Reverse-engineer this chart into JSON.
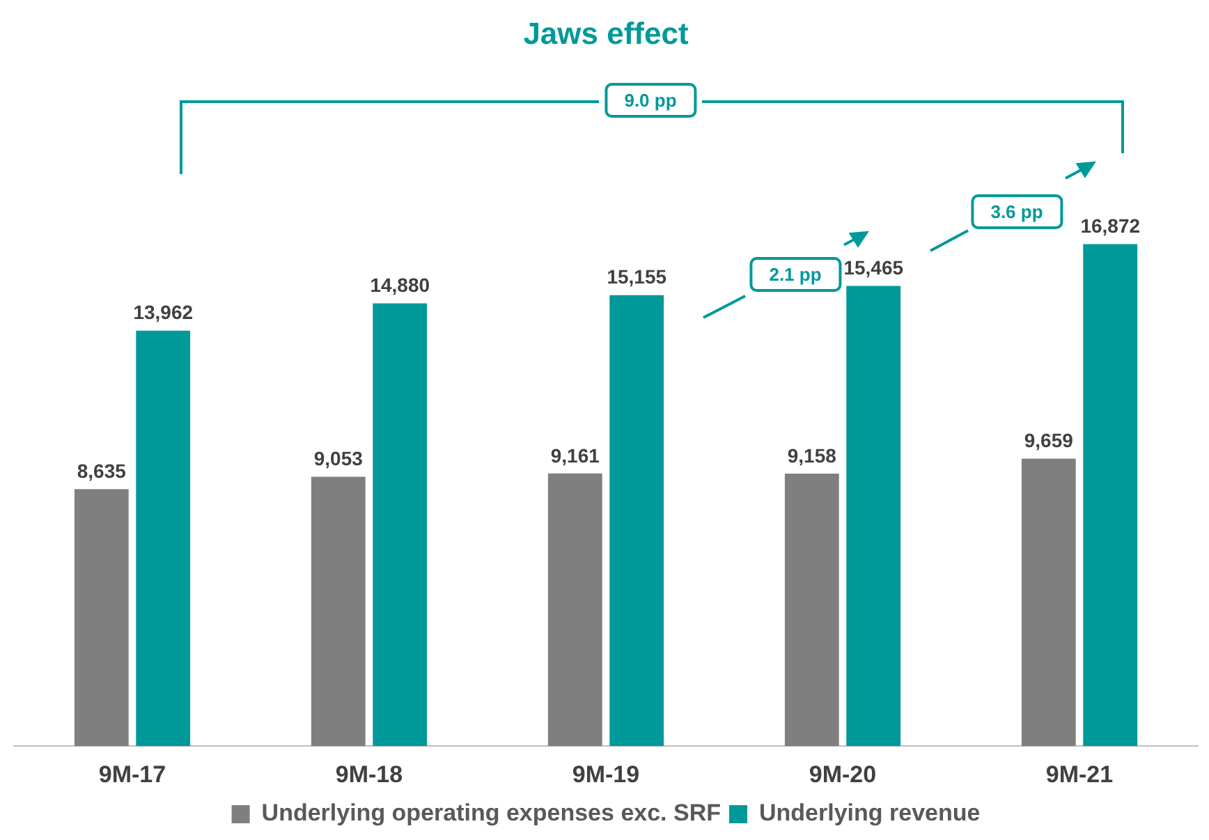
{
  "chart_data": {
    "type": "bar",
    "title": "Jaws effect",
    "categories": [
      "9M-17",
      "9M-18",
      "9M-19",
      "9M-20",
      "9M-21"
    ],
    "series": [
      {
        "name": "Underlying operating expenses exc. SRF",
        "color": "#7f7f7f",
        "values": [
          8635,
          9053,
          9161,
          9158,
          9659
        ],
        "value_labels": [
          "8,635",
          "9,053",
          "9,161",
          "9,158",
          "9,659"
        ]
      },
      {
        "name": "Underlying revenue",
        "color": "#009999",
        "values": [
          13962,
          14880,
          15155,
          15465,
          16872
        ],
        "value_labels": [
          "13,962",
          "14,880",
          "15,155",
          "15,465",
          "16,872"
        ]
      }
    ],
    "tick_labels": "x",
    "grid": false,
    "legend": "bottom",
    "annotations": [
      "9.0 pp",
      "2.1 pp",
      "3.6 pp"
    ]
  }
}
